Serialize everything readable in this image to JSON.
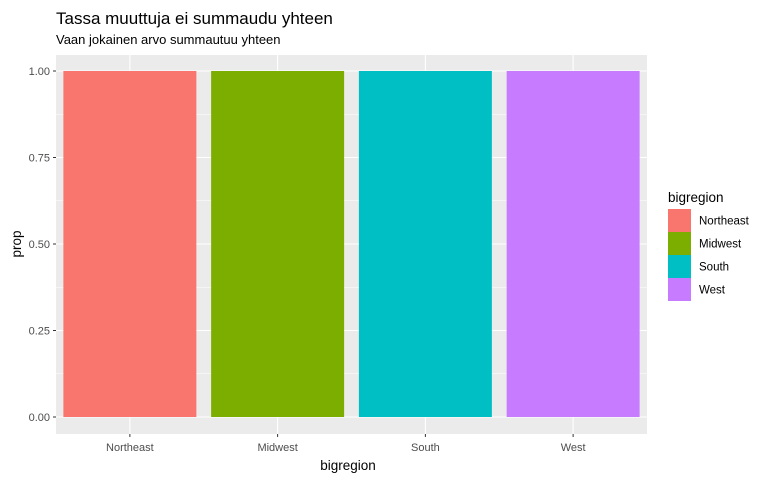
{
  "chart_data": {
    "type": "bar",
    "title": "Tassa muuttuja ei summaudu yhteen",
    "subtitle": "Vaan jokainen arvo summautuu yhteen",
    "xlabel": "bigregion",
    "ylabel": "prop",
    "categories": [
      "Northeast",
      "Midwest",
      "South",
      "West"
    ],
    "values": [
      1.0,
      1.0,
      1.0,
      1.0
    ],
    "colors": [
      "#F8766D",
      "#7CAE00",
      "#00BFC4",
      "#C77CFF"
    ],
    "ylim": [
      0,
      1.05
    ],
    "yticks": [
      0.0,
      0.25,
      0.5,
      0.75,
      1.0
    ],
    "ytick_labels": [
      "0.00",
      "0.25",
      "0.50",
      "0.75",
      "1.00"
    ],
    "grid": true,
    "panel_background": "#EBEBEB",
    "legend": {
      "title": "bigregion",
      "placement": "right",
      "entries": [
        "Northeast",
        "Midwest",
        "South",
        "West"
      ]
    }
  }
}
